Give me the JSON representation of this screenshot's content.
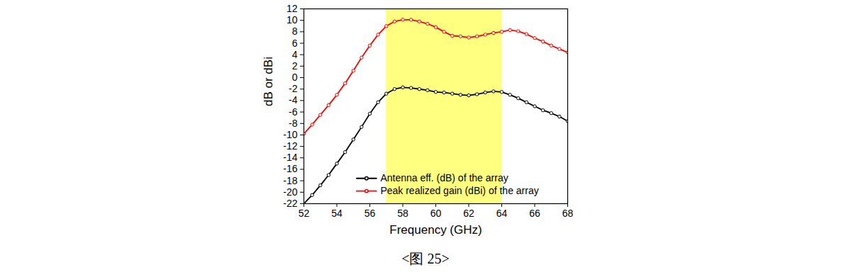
{
  "chart_data": {
    "type": "line",
    "caption": "<图 25>",
    "x_label": "Frequency (GHz)",
    "y_label": "dB or dBi",
    "xlim": [
      52,
      68
    ],
    "xticks": [
      52,
      54,
      56,
      58,
      60,
      62,
      64,
      66,
      68
    ],
    "ylim": [
      -22,
      12
    ],
    "yticks": [
      -22,
      -20,
      -18,
      -16,
      -14,
      -12,
      -10,
      -8,
      -6,
      -4,
      -2,
      0,
      2,
      4,
      6,
      8,
      10,
      12
    ],
    "grid": false,
    "legend": "lower right",
    "highlight": {
      "x": [
        57,
        64
      ],
      "color": "#ffff80"
    },
    "x": [
      52,
      52.5,
      53,
      53.5,
      54,
      54.5,
      55,
      55.5,
      56,
      56.5,
      57,
      57.5,
      58,
      58.5,
      59,
      59.5,
      60,
      60.5,
      61,
      61.5,
      62,
      62.5,
      63,
      63.5,
      64,
      64.5,
      65,
      65.5,
      66,
      66.5,
      67,
      67.5,
      68
    ],
    "series": [
      {
        "name": "Antenna eff. (dB) of the array",
        "color": "#000000",
        "marker": "circle",
        "values": [
          -22,
          -20.5,
          -18.8,
          -17,
          -15,
          -13,
          -10.8,
          -8.6,
          -6.3,
          -4.3,
          -2.8,
          -2.0,
          -1.7,
          -1.8,
          -2.0,
          -2.2,
          -2.5,
          -2.6,
          -2.8,
          -3.0,
          -3.1,
          -2.9,
          -2.6,
          -2.4,
          -2.5,
          -3.0,
          -3.6,
          -4.3,
          -5.0,
          -5.7,
          -6.2,
          -6.8,
          -7.6
        ]
      },
      {
        "name": "Peak realized gain (dBi) of the array",
        "color": "#ff0000",
        "marker": "circle",
        "values": [
          -9.8,
          -8.2,
          -6.5,
          -4.8,
          -3.0,
          -1.0,
          1.2,
          3.5,
          5.6,
          7.5,
          9.0,
          9.8,
          10.1,
          10.1,
          9.8,
          9.4,
          8.8,
          8.0,
          7.3,
          7.2,
          7.0,
          7.2,
          7.5,
          7.8,
          8.0,
          8.3,
          8.1,
          7.6,
          6.9,
          6.3,
          5.6,
          5.0,
          4.4
        ]
      }
    ]
  }
}
